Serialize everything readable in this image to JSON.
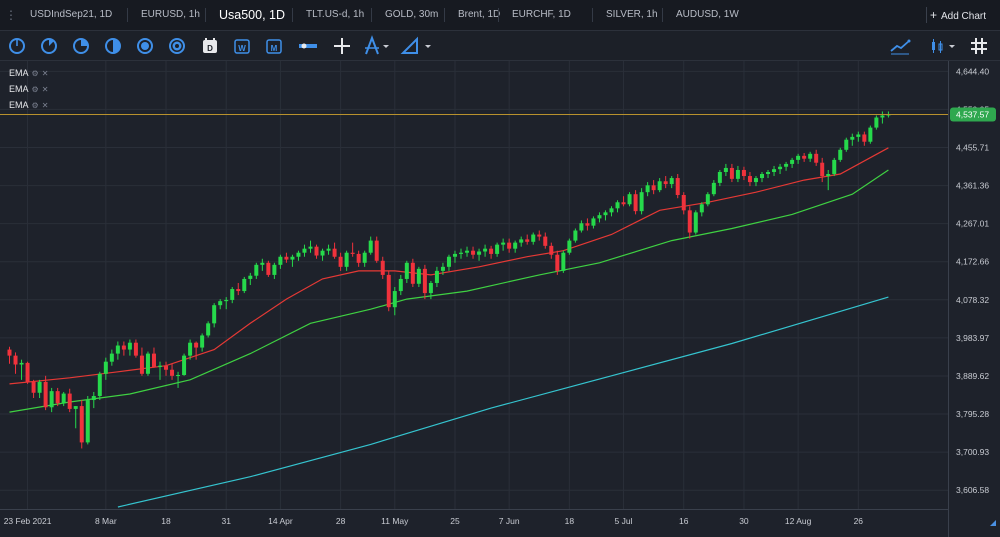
{
  "tabs": [
    {
      "label": "USDIndSep21, 1D",
      "active": false
    },
    {
      "label": "EURUSD, 1h",
      "active": false
    },
    {
      "label": "Usa500, 1D",
      "active": true
    },
    {
      "label": "TLT.US-d, 1h",
      "active": false
    },
    {
      "label": "GOLD, 30m",
      "active": false
    },
    {
      "label": "Brent, 1D",
      "active": false
    },
    {
      "label": "EURCHF, 1D",
      "active": false
    },
    {
      "label": "SILVER, 1h",
      "active": false
    },
    {
      "label": "AUDUSD, 1W",
      "active": false
    }
  ],
  "add_chart_label": "Add Chart",
  "toolbar_icons": [
    "circle-tool-icon",
    "pie-quarter-icon",
    "pie-three-quarter-icon",
    "half-circle-icon",
    "ring-icon",
    "double-ring-icon",
    "daily-period-icon",
    "weekly-period-icon",
    "monthly-period-icon",
    "horizontal-line-icon",
    "crosshair-icon",
    "fibonacci-icon",
    "dropdown-icon",
    "triangle-ruler-icon",
    "dropdown-icon",
    "indicator-icon",
    "chart-type-icon",
    "dropdown-icon",
    "grid-icon"
  ],
  "legend": {
    "items": [
      {
        "label": "EMA"
      },
      {
        "label": "EMA"
      },
      {
        "label": "EMA"
      }
    ]
  },
  "colors": {
    "up": "#26d94b",
    "down": "#f0323c",
    "ema_fast": "#e53935",
    "ema_mid": "#3fd142",
    "ema_slow": "#35c4cf",
    "price_line": "#b8912d",
    "price_badge": "#2fa84f",
    "background": "#1e222b",
    "grid": "#2a2f39"
  },
  "current_price": {
    "value": "4,537.57",
    "price": 4537.57
  },
  "chart_data": {
    "type": "candlestick",
    "symbol": "Usa500",
    "timeframe": "1D",
    "ylim": [
      3560,
      4670
    ],
    "y_ticks": [
      "4,644.40",
      "4,550.05",
      "4,455.71",
      "4,361.36",
      "4,267.01",
      "4,172.66",
      "4,078.32",
      "3,983.97",
      "3,889.62",
      "3,795.28",
      "3,700.93",
      "3,606.58"
    ],
    "y_tick_values": [
      4644.4,
      4550.05,
      4455.71,
      4361.36,
      4267.01,
      4172.66,
      4078.32,
      3983.97,
      3889.62,
      3795.28,
      3700.93,
      3606.58
    ],
    "x_ticks": [
      "23 Feb 2021",
      "8 Mar",
      "18",
      "31",
      "14 Apr",
      "28",
      "11 May",
      "25",
      "7 Jun",
      "18",
      "5 Jul",
      "16",
      "30",
      "12 Aug",
      "26"
    ],
    "x_tick_bars": [
      3,
      16,
      26,
      36,
      45,
      55,
      64,
      74,
      83,
      93,
      102,
      112,
      122,
      131,
      141
    ],
    "candles": [
      [
        3955,
        3962,
        3920,
        3940
      ],
      [
        3940,
        3948,
        3895,
        3918
      ],
      [
        3918,
        3930,
        3880,
        3922
      ],
      [
        3922,
        3925,
        3870,
        3875
      ],
      [
        3875,
        3880,
        3835,
        3848
      ],
      [
        3848,
        3880,
        3835,
        3875
      ],
      [
        3875,
        3890,
        3805,
        3812
      ],
      [
        3812,
        3860,
        3800,
        3852
      ],
      [
        3852,
        3860,
        3815,
        3822
      ],
      [
        3822,
        3850,
        3815,
        3846
      ],
      [
        3846,
        3858,
        3800,
        3808
      ],
      [
        3808,
        3815,
        3760,
        3815
      ],
      [
        3815,
        3830,
        3710,
        3725
      ],
      [
        3725,
        3840,
        3720,
        3830
      ],
      [
        3830,
        3850,
        3810,
        3840
      ],
      [
        3840,
        3900,
        3830,
        3895
      ],
      [
        3895,
        3935,
        3880,
        3925
      ],
      [
        3925,
        3955,
        3915,
        3945
      ],
      [
        3945,
        3975,
        3930,
        3965
      ],
      [
        3965,
        3975,
        3940,
        3955
      ],
      [
        3955,
        3980,
        3940,
        3972
      ],
      [
        3972,
        3980,
        3935,
        3940
      ],
      [
        3940,
        3960,
        3890,
        3895
      ],
      [
        3895,
        3950,
        3890,
        3945
      ],
      [
        3945,
        3960,
        3910,
        3912
      ],
      [
        3912,
        3925,
        3880,
        3915
      ],
      [
        3915,
        3925,
        3890,
        3905
      ],
      [
        3905,
        3920,
        3880,
        3890
      ],
      [
        3890,
        3900,
        3860,
        3892
      ],
      [
        3892,
        3945,
        3890,
        3940
      ],
      [
        3940,
        3980,
        3930,
        3972
      ],
      [
        3972,
        3975,
        3930,
        3960
      ],
      [
        3960,
        3995,
        3950,
        3990
      ],
      [
        3990,
        4025,
        3985,
        4020
      ],
      [
        4020,
        4070,
        4010,
        4065
      ],
      [
        4065,
        4080,
        4055,
        4075
      ],
      [
        4075,
        4085,
        4055,
        4078
      ],
      [
        4078,
        4110,
        4070,
        4105
      ],
      [
        4105,
        4120,
        4090,
        4100
      ],
      [
        4100,
        4135,
        4095,
        4130
      ],
      [
        4130,
        4145,
        4115,
        4138
      ],
      [
        4138,
        4170,
        4130,
        4165
      ],
      [
        4165,
        4180,
        4150,
        4170
      ],
      [
        4170,
        4175,
        4135,
        4140
      ],
      [
        4140,
        4170,
        4130,
        4165
      ],
      [
        4165,
        4190,
        4155,
        4185
      ],
      [
        4185,
        4195,
        4170,
        4178
      ],
      [
        4178,
        4190,
        4160,
        4185
      ],
      [
        4185,
        4200,
        4175,
        4195
      ],
      [
        4195,
        4215,
        4185,
        4205
      ],
      [
        4205,
        4225,
        4195,
        4210
      ],
      [
        4210,
        4215,
        4180,
        4188
      ],
      [
        4188,
        4205,
        4175,
        4200
      ],
      [
        4200,
        4215,
        4190,
        4205
      ],
      [
        4205,
        4220,
        4180,
        4185
      ],
      [
        4185,
        4195,
        4150,
        4160
      ],
      [
        4160,
        4200,
        4150,
        4195
      ],
      [
        4195,
        4220,
        4185,
        4192
      ],
      [
        4192,
        4200,
        4160,
        4170
      ],
      [
        4170,
        4200,
        4160,
        4195
      ],
      [
        4195,
        4235,
        4190,
        4225
      ],
      [
        4225,
        4235,
        4170,
        4175
      ],
      [
        4175,
        4185,
        4130,
        4140
      ],
      [
        4140,
        4150,
        4050,
        4060
      ],
      [
        4060,
        4110,
        4040,
        4100
      ],
      [
        4100,
        4140,
        4090,
        4130
      ],
      [
        4130,
        4175,
        4120,
        4170
      ],
      [
        4170,
        4180,
        4110,
        4118
      ],
      [
        4118,
        4160,
        4110,
        4155
      ],
      [
        4155,
        4165,
        4080,
        4095
      ],
      [
        4095,
        4125,
        4080,
        4120
      ],
      [
        4120,
        4160,
        4110,
        4150
      ],
      [
        4150,
        4170,
        4140,
        4160
      ],
      [
        4160,
        4190,
        4150,
        4185
      ],
      [
        4185,
        4200,
        4170,
        4192
      ],
      [
        4192,
        4205,
        4180,
        4195
      ],
      [
        4195,
        4210,
        4185,
        4200
      ],
      [
        4200,
        4210,
        4180,
        4190
      ],
      [
        4190,
        4205,
        4175,
        4198
      ],
      [
        4198,
        4215,
        4185,
        4205
      ],
      [
        4205,
        4212,
        4180,
        4192
      ],
      [
        4192,
        4220,
        4185,
        4215
      ],
      [
        4215,
        4230,
        4200,
        4220
      ],
      [
        4220,
        4230,
        4195,
        4205
      ],
      [
        4205,
        4225,
        4195,
        4220
      ],
      [
        4220,
        4235,
        4210,
        4228
      ],
      [
        4228,
        4240,
        4215,
        4222
      ],
      [
        4222,
        4245,
        4215,
        4240
      ],
      [
        4240,
        4250,
        4225,
        4235
      ],
      [
        4235,
        4245,
        4205,
        4212
      ],
      [
        4212,
        4220,
        4180,
        4190
      ],
      [
        4190,
        4200,
        4140,
        4150
      ],
      [
        4150,
        4200,
        4145,
        4195
      ],
      [
        4195,
        4230,
        4190,
        4225
      ],
      [
        4225,
        4255,
        4220,
        4250
      ],
      [
        4250,
        4275,
        4245,
        4268
      ],
      [
        4268,
        4280,
        4250,
        4262
      ],
      [
        4262,
        4285,
        4255,
        4280
      ],
      [
        4280,
        4295,
        4270,
        4288
      ],
      [
        4288,
        4300,
        4275,
        4295
      ],
      [
        4295,
        4310,
        4285,
        4305
      ],
      [
        4305,
        4325,
        4295,
        4320
      ],
      [
        4320,
        4335,
        4310,
        4315
      ],
      [
        4315,
        4345,
        4310,
        4340
      ],
      [
        4340,
        4350,
        4290,
        4298
      ],
      [
        4298,
        4355,
        4290,
        4345
      ],
      [
        4345,
        4370,
        4335,
        4362
      ],
      [
        4362,
        4375,
        4340,
        4350
      ],
      [
        4350,
        4380,
        4345,
        4372
      ],
      [
        4372,
        4385,
        4355,
        4365
      ],
      [
        4365,
        4385,
        4355,
        4380
      ],
      [
        4380,
        4390,
        4330,
        4338
      ],
      [
        4338,
        4345,
        4290,
        4300
      ],
      [
        4300,
        4310,
        4230,
        4245
      ],
      [
        4245,
        4300,
        4240,
        4295
      ],
      [
        4295,
        4320,
        4285,
        4315
      ],
      [
        4315,
        4345,
        4310,
        4340
      ],
      [
        4340,
        4375,
        4335,
        4368
      ],
      [
        4368,
        4400,
        4360,
        4395
      ],
      [
        4395,
        4415,
        4385,
        4405
      ],
      [
        4405,
        4415,
        4370,
        4378
      ],
      [
        4378,
        4410,
        4370,
        4400
      ],
      [
        4400,
        4408,
        4375,
        4385
      ],
      [
        4385,
        4395,
        4360,
        4370
      ],
      [
        4370,
        4385,
        4360,
        4380
      ],
      [
        4380,
        4395,
        4370,
        4390
      ],
      [
        4390,
        4400,
        4380,
        4395
      ],
      [
        4395,
        4410,
        4385,
        4402
      ],
      [
        4402,
        4415,
        4390,
        4408
      ],
      [
        4408,
        4420,
        4398,
        4415
      ],
      [
        4415,
        4430,
        4405,
        4425
      ],
      [
        4425,
        4440,
        4415,
        4435
      ],
      [
        4435,
        4442,
        4420,
        4428
      ],
      [
        4428,
        4445,
        4420,
        4440
      ],
      [
        4440,
        4450,
        4410,
        4418
      ],
      [
        4418,
        4430,
        4370,
        4385
      ],
      [
        4385,
        4400,
        4350,
        4390
      ],
      [
        4390,
        4430,
        4385,
        4425
      ],
      [
        4425,
        4455,
        4420,
        4450
      ],
      [
        4450,
        4480,
        4445,
        4475
      ],
      [
        4475,
        4490,
        4460,
        4482
      ],
      [
        4482,
        4495,
        4470,
        4488
      ],
      [
        4488,
        4495,
        4460,
        4470
      ],
      [
        4470,
        4510,
        4465,
        4505
      ],
      [
        4505,
        4535,
        4500,
        4530
      ],
      [
        4530,
        4545,
        4515,
        4535
      ],
      [
        4535,
        4545,
        4530,
        4537.57
      ]
    ],
    "ema_fast": [
      [
        0,
        3870
      ],
      [
        10,
        3885
      ],
      [
        18,
        3900
      ],
      [
        26,
        3915
      ],
      [
        34,
        3955
      ],
      [
        40,
        4020
      ],
      [
        46,
        4080
      ],
      [
        52,
        4130
      ],
      [
        58,
        4150
      ],
      [
        64,
        4150
      ],
      [
        70,
        4140
      ],
      [
        78,
        4160
      ],
      [
        86,
        4185
      ],
      [
        92,
        4200
      ],
      [
        100,
        4240
      ],
      [
        108,
        4300
      ],
      [
        116,
        4320
      ],
      [
        124,
        4345
      ],
      [
        132,
        4375
      ],
      [
        138,
        4390
      ],
      [
        146,
        4455
      ]
    ],
    "ema_mid": [
      [
        0,
        3800
      ],
      [
        10,
        3825
      ],
      [
        20,
        3845
      ],
      [
        30,
        3880
      ],
      [
        40,
        3945
      ],
      [
        50,
        4020
      ],
      [
        60,
        4055
      ],
      [
        66,
        4080
      ],
      [
        76,
        4100
      ],
      [
        88,
        4140
      ],
      [
        98,
        4170
      ],
      [
        110,
        4225
      ],
      [
        120,
        4255
      ],
      [
        130,
        4290
      ],
      [
        140,
        4340
      ],
      [
        146,
        4400
      ]
    ],
    "ema_slow": [
      [
        18,
        3565
      ],
      [
        40,
        3640
      ],
      [
        60,
        3720
      ],
      [
        80,
        3810
      ],
      [
        100,
        3890
      ],
      [
        120,
        3970
      ],
      [
        146,
        4085
      ]
    ]
  }
}
